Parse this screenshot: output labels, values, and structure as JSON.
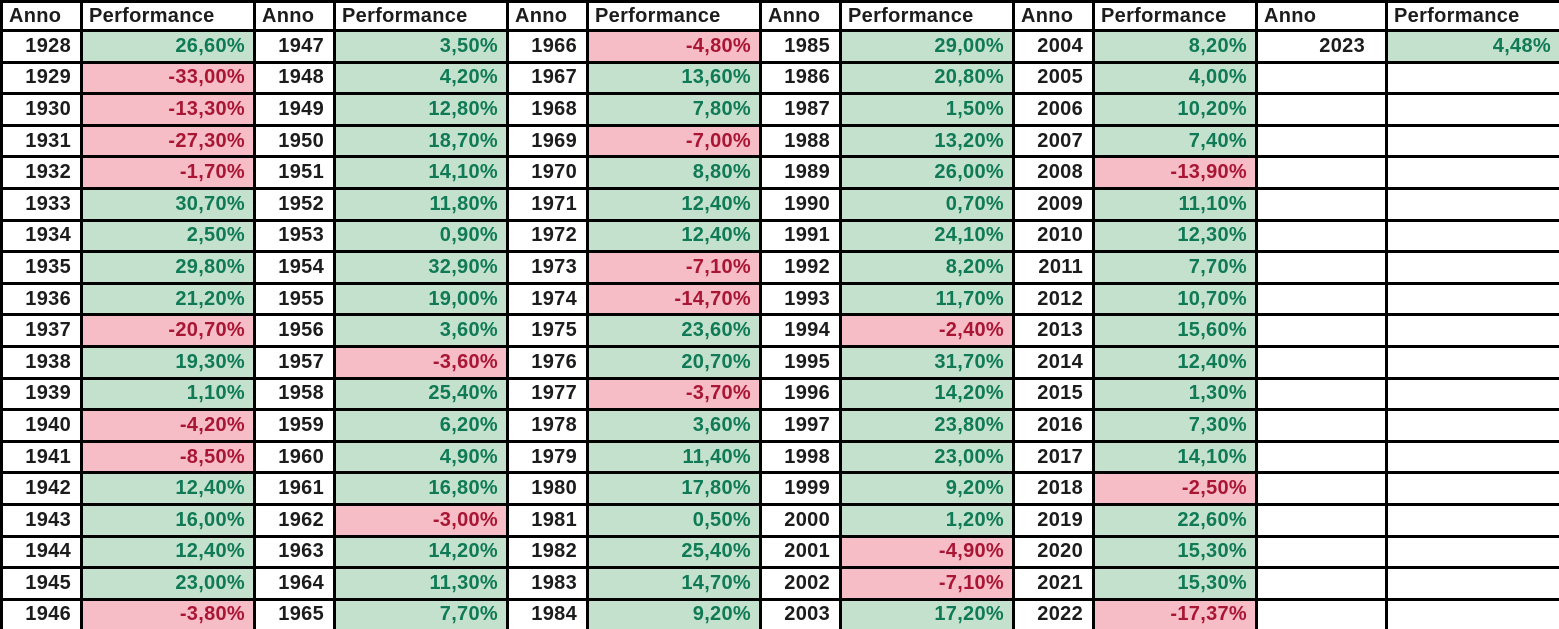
{
  "table": {
    "column_header_year": "Anno",
    "column_header_performance": "Performance",
    "colors": {
      "positive_bg": "#c4e1cd",
      "positive_text": "#0f7a55",
      "negative_bg": "#f7bdc7",
      "negative_text": "#a81634",
      "border": "#000000",
      "year_text": "#1c1c1c"
    },
    "groups": [
      {
        "rows": [
          {
            "year": "1928",
            "value": "26,60%",
            "sign": "pos"
          },
          {
            "year": "1929",
            "value": "-33,00%",
            "sign": "neg"
          },
          {
            "year": "1930",
            "value": "-13,30%",
            "sign": "neg"
          },
          {
            "year": "1931",
            "value": "-27,30%",
            "sign": "neg"
          },
          {
            "year": "1932",
            "value": "-1,70%",
            "sign": "neg"
          },
          {
            "year": "1933",
            "value": "30,70%",
            "sign": "pos"
          },
          {
            "year": "1934",
            "value": "2,50%",
            "sign": "pos"
          },
          {
            "year": "1935",
            "value": "29,80%",
            "sign": "pos"
          },
          {
            "year": "1936",
            "value": "21,20%",
            "sign": "pos"
          },
          {
            "year": "1937",
            "value": "-20,70%",
            "sign": "neg"
          },
          {
            "year": "1938",
            "value": "19,30%",
            "sign": "pos"
          },
          {
            "year": "1939",
            "value": "1,10%",
            "sign": "pos"
          },
          {
            "year": "1940",
            "value": "-4,20%",
            "sign": "neg"
          },
          {
            "year": "1941",
            "value": "-8,50%",
            "sign": "neg"
          },
          {
            "year": "1942",
            "value": "12,40%",
            "sign": "pos"
          },
          {
            "year": "1943",
            "value": "16,00%",
            "sign": "pos"
          },
          {
            "year": "1944",
            "value": "12,40%",
            "sign": "pos"
          },
          {
            "year": "1945",
            "value": "23,00%",
            "sign": "pos"
          },
          {
            "year": "1946",
            "value": "-3,80%",
            "sign": "neg"
          }
        ]
      },
      {
        "rows": [
          {
            "year": "1947",
            "value": "3,50%",
            "sign": "pos"
          },
          {
            "year": "1948",
            "value": "4,20%",
            "sign": "pos"
          },
          {
            "year": "1949",
            "value": "12,80%",
            "sign": "pos"
          },
          {
            "year": "1950",
            "value": "18,70%",
            "sign": "pos"
          },
          {
            "year": "1951",
            "value": "14,10%",
            "sign": "pos"
          },
          {
            "year": "1952",
            "value": "11,80%",
            "sign": "pos"
          },
          {
            "year": "1953",
            "value": "0,90%",
            "sign": "pos"
          },
          {
            "year": "1954",
            "value": "32,90%",
            "sign": "pos"
          },
          {
            "year": "1955",
            "value": "19,00%",
            "sign": "pos"
          },
          {
            "year": "1956",
            "value": "3,60%",
            "sign": "pos"
          },
          {
            "year": "1957",
            "value": "-3,60%",
            "sign": "neg"
          },
          {
            "year": "1958",
            "value": "25,40%",
            "sign": "pos"
          },
          {
            "year": "1959",
            "value": "6,20%",
            "sign": "pos"
          },
          {
            "year": "1960",
            "value": "4,90%",
            "sign": "pos"
          },
          {
            "year": "1961",
            "value": "16,80%",
            "sign": "pos"
          },
          {
            "year": "1962",
            "value": "-3,00%",
            "sign": "neg"
          },
          {
            "year": "1963",
            "value": "14,20%",
            "sign": "pos"
          },
          {
            "year": "1964",
            "value": "11,30%",
            "sign": "pos"
          },
          {
            "year": "1965",
            "value": "7,70%",
            "sign": "pos"
          }
        ]
      },
      {
        "rows": [
          {
            "year": "1966",
            "value": "-4,80%",
            "sign": "neg"
          },
          {
            "year": "1967",
            "value": "13,60%",
            "sign": "pos"
          },
          {
            "year": "1968",
            "value": "7,80%",
            "sign": "pos"
          },
          {
            "year": "1969",
            "value": "-7,00%",
            "sign": "neg"
          },
          {
            "year": "1970",
            "value": "8,80%",
            "sign": "pos"
          },
          {
            "year": "1971",
            "value": "12,40%",
            "sign": "pos"
          },
          {
            "year": "1972",
            "value": "12,40%",
            "sign": "pos"
          },
          {
            "year": "1973",
            "value": "-7,10%",
            "sign": "neg"
          },
          {
            "year": "1974",
            "value": "-14,70%",
            "sign": "neg"
          },
          {
            "year": "1975",
            "value": "23,60%",
            "sign": "pos"
          },
          {
            "year": "1976",
            "value": "20,70%",
            "sign": "pos"
          },
          {
            "year": "1977",
            "value": "-3,70%",
            "sign": "neg"
          },
          {
            "year": "1978",
            "value": "3,60%",
            "sign": "pos"
          },
          {
            "year": "1979",
            "value": "11,40%",
            "sign": "pos"
          },
          {
            "year": "1980",
            "value": "17,80%",
            "sign": "pos"
          },
          {
            "year": "1981",
            "value": "0,50%",
            "sign": "pos"
          },
          {
            "year": "1982",
            "value": "25,40%",
            "sign": "pos"
          },
          {
            "year": "1983",
            "value": "14,70%",
            "sign": "pos"
          },
          {
            "year": "1984",
            "value": "9,20%",
            "sign": "pos"
          }
        ]
      },
      {
        "rows": [
          {
            "year": "1985",
            "value": "29,00%",
            "sign": "pos"
          },
          {
            "year": "1986",
            "value": "20,80%",
            "sign": "pos"
          },
          {
            "year": "1987",
            "value": "1,50%",
            "sign": "pos"
          },
          {
            "year": "1988",
            "value": "13,20%",
            "sign": "pos"
          },
          {
            "year": "1989",
            "value": "26,00%",
            "sign": "pos"
          },
          {
            "year": "1990",
            "value": "0,70%",
            "sign": "pos"
          },
          {
            "year": "1991",
            "value": "24,10%",
            "sign": "pos"
          },
          {
            "year": "1992",
            "value": "8,20%",
            "sign": "pos"
          },
          {
            "year": "1993",
            "value": "11,70%",
            "sign": "pos"
          },
          {
            "year": "1994",
            "value": "-2,40%",
            "sign": "neg"
          },
          {
            "year": "1995",
            "value": "31,70%",
            "sign": "pos"
          },
          {
            "year": "1996",
            "value": "14,20%",
            "sign": "pos"
          },
          {
            "year": "1997",
            "value": "23,80%",
            "sign": "pos"
          },
          {
            "year": "1998",
            "value": "23,00%",
            "sign": "pos"
          },
          {
            "year": "1999",
            "value": "9,20%",
            "sign": "pos"
          },
          {
            "year": "2000",
            "value": "1,20%",
            "sign": "pos"
          },
          {
            "year": "2001",
            "value": "-4,90%",
            "sign": "neg"
          },
          {
            "year": "2002",
            "value": "-7,10%",
            "sign": "neg"
          },
          {
            "year": "2003",
            "value": "17,20%",
            "sign": "pos"
          }
        ]
      },
      {
        "rows": [
          {
            "year": "2004",
            "value": "8,20%",
            "sign": "pos"
          },
          {
            "year": "2005",
            "value": "4,00%",
            "sign": "pos"
          },
          {
            "year": "2006",
            "value": "10,20%",
            "sign": "pos"
          },
          {
            "year": "2007",
            "value": "7,40%",
            "sign": "pos"
          },
          {
            "year": "2008",
            "value": "-13,90%",
            "sign": "neg"
          },
          {
            "year": "2009",
            "value": "11,10%",
            "sign": "pos"
          },
          {
            "year": "2010",
            "value": "12,30%",
            "sign": "pos"
          },
          {
            "year": "2011",
            "value": "7,70%",
            "sign": "pos"
          },
          {
            "year": "2012",
            "value": "10,70%",
            "sign": "pos"
          },
          {
            "year": "2013",
            "value": "15,60%",
            "sign": "pos"
          },
          {
            "year": "2014",
            "value": "12,40%",
            "sign": "pos"
          },
          {
            "year": "2015",
            "value": "1,30%",
            "sign": "pos"
          },
          {
            "year": "2016",
            "value": "7,30%",
            "sign": "pos"
          },
          {
            "year": "2017",
            "value": "14,10%",
            "sign": "pos"
          },
          {
            "year": "2018",
            "value": "-2,50%",
            "sign": "neg"
          },
          {
            "year": "2019",
            "value": "22,60%",
            "sign": "pos"
          },
          {
            "year": "2020",
            "value": "15,30%",
            "sign": "pos"
          },
          {
            "year": "2021",
            "value": "15,30%",
            "sign": "pos"
          },
          {
            "year": "2022",
            "value": "-17,37%",
            "sign": "neg"
          }
        ]
      },
      {
        "rows": [
          {
            "year": "2023",
            "value": "4,48%",
            "sign": "pos"
          }
        ]
      }
    ]
  }
}
